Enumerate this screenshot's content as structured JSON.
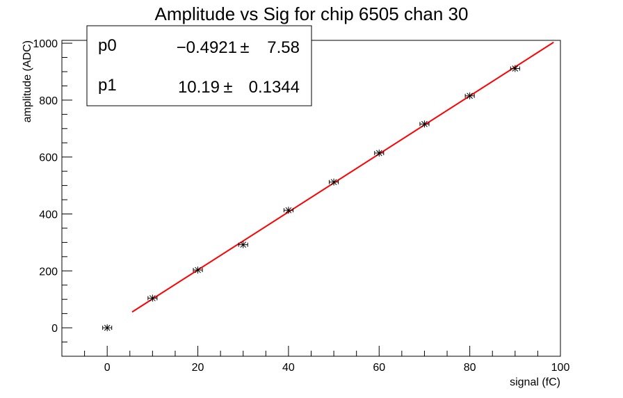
{
  "chart_data": {
    "type": "scatter",
    "title": "Amplitude vs Sig for chip 6505 chan 30",
    "xlabel": "signal (fC)",
    "ylabel": "amplitude (ADC)",
    "xlim": [
      -10,
      100
    ],
    "ylim": [
      -100,
      1010
    ],
    "grid": false,
    "x_ticks": [
      "0",
      "20",
      "40",
      "60",
      "80",
      "100"
    ],
    "y_ticks": [
      "0",
      "200",
      "400",
      "600",
      "800",
      "1000"
    ],
    "points": [
      {
        "x": 0,
        "y": 0
      },
      {
        "x": 10,
        "y": 104
      },
      {
        "x": 20,
        "y": 203
      },
      {
        "x": 30,
        "y": 292
      },
      {
        "x": 40,
        "y": 413
      },
      {
        "x": 50,
        "y": 512
      },
      {
        "x": 60,
        "y": 614
      },
      {
        "x": 70,
        "y": 716
      },
      {
        "x": 80,
        "y": 815
      },
      {
        "x": 90,
        "y": 911
      }
    ],
    "x_error": 1,
    "fit": {
      "type": "linear",
      "color": "#ff0000",
      "x_range": [
        5.5,
        98.5
      ],
      "params": [
        {
          "name": "p0",
          "value": "−0.4921",
          "pm": "±",
          "error": "7.58"
        },
        {
          "name": "p1",
          "value": "10.19",
          "pm": "±",
          "error": "0.1344"
        }
      ],
      "p0": -0.4921,
      "p1": 10.19
    },
    "legend_position": "top-left"
  }
}
